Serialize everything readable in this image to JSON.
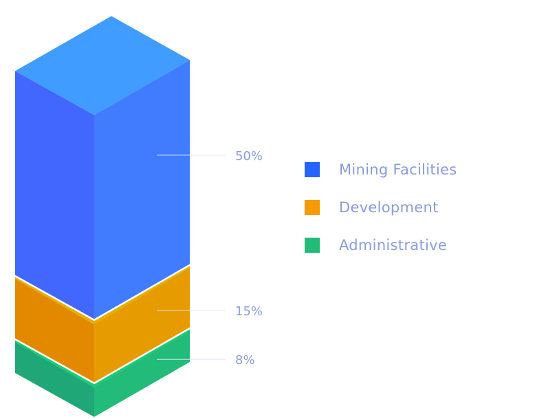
{
  "chart_data": {
    "type": "bar",
    "style": "isometric-stacked",
    "categories": [
      "Mining Facilities",
      "Development",
      "Administrative"
    ],
    "values": [
      50,
      15,
      8
    ],
    "value_labels": [
      "50%",
      "15%",
      "8%"
    ],
    "legend_placement": "right",
    "colors": {
      "Mining Facilities": {
        "legend": "#2563ff",
        "top": "#409cff",
        "left": "#4267ff",
        "right": "#417cff"
      },
      "Development": {
        "legend": "#f59b00",
        "top": "#e6b000",
        "left": "#e38900",
        "right": "#e69c00"
      },
      "Administrative": {
        "legend": "#22bb77",
        "top": "#18cc78",
        "left": "#1fa777",
        "right": "#22bb7a"
      }
    },
    "label_color": "#8a9be0"
  }
}
